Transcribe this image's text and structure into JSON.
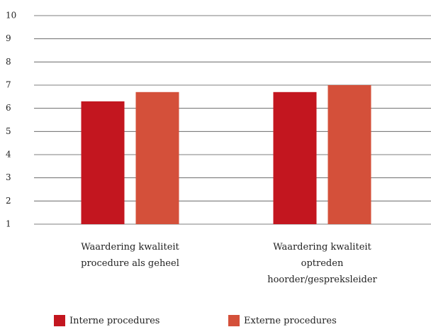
{
  "chart_data": {
    "type": "bar",
    "categories": [
      "Waardering kwaliteit procedure als geheel",
      "Waardering kwaliteit optreden hoorder/gespreksleider"
    ],
    "series": [
      {
        "name": "Interne procedures",
        "color": "#c3161f",
        "values": [
          6.3,
          6.7
        ]
      },
      {
        "name": "Externe procedures",
        "color": "#d4503a",
        "values": [
          6.7,
          7.0
        ]
      }
    ],
    "ylim": [
      1,
      10
    ],
    "yticks": [
      1,
      2,
      3,
      4,
      5,
      6,
      7,
      8,
      9,
      10
    ],
    "grid": true
  }
}
